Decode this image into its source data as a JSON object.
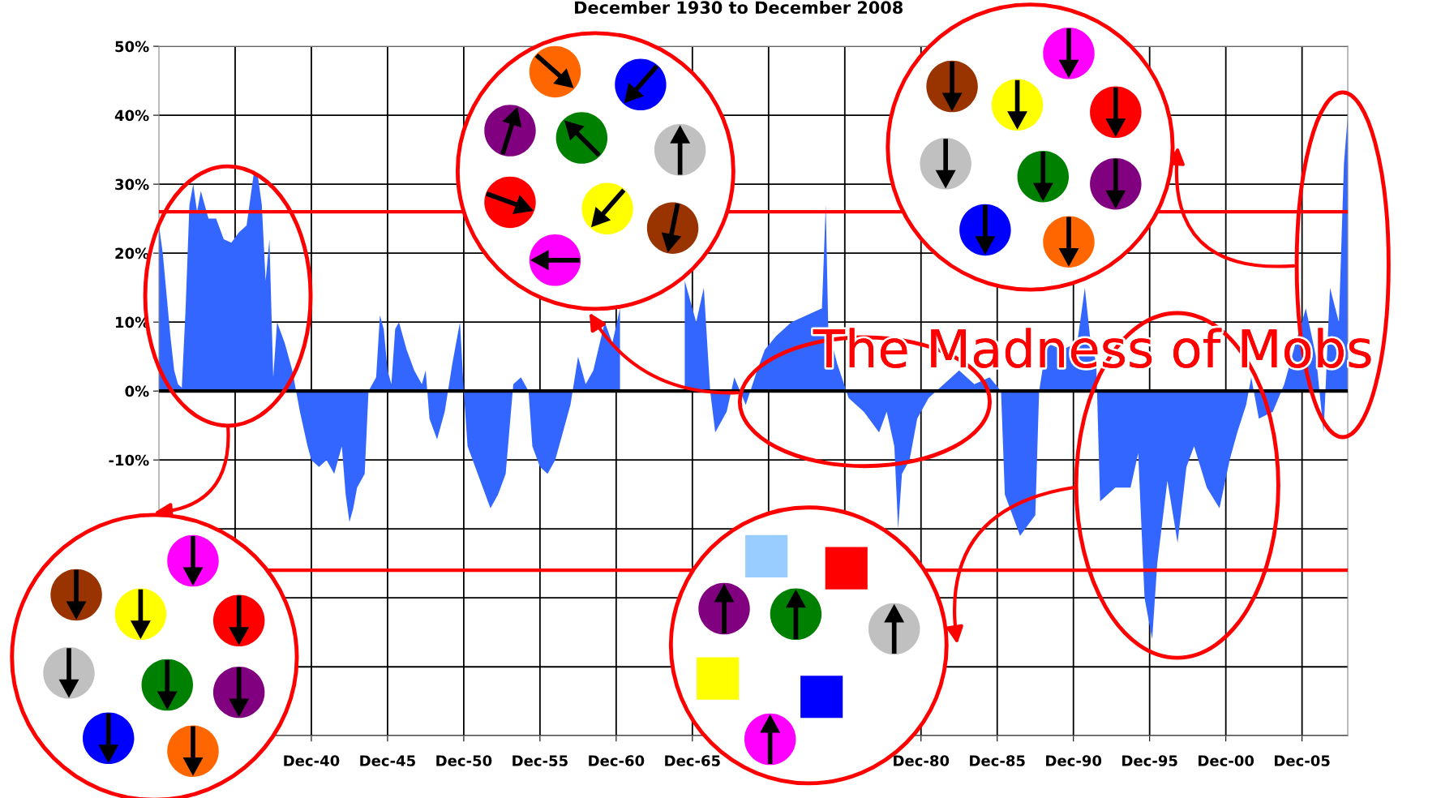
{
  "chart_data": {
    "type": "area",
    "title": "December 1930 to December 2008",
    "x": [
      "1930-12",
      "1931-03",
      "1931-06",
      "1931-09",
      "1931-12",
      "1932-03",
      "1932-06",
      "1932-09",
      "1932-12",
      "1933-03",
      "1933-06",
      "1933-09",
      "1934-03",
      "1934-09",
      "1935-03",
      "1935-09",
      "1936-03",
      "1936-09",
      "1937-03",
      "1937-06",
      "1937-09",
      "1937-12",
      "1938-03",
      "1938-06",
      "1938-09",
      "1939-03",
      "1939-09",
      "1940-03",
      "1940-09",
      "1940-12",
      "1941-06",
      "1941-12",
      "1942-06",
      "1942-12",
      "1943-03",
      "1943-06",
      "1943-09",
      "1943-12",
      "1944-06",
      "1944-09",
      "1945-03",
      "1945-06",
      "1945-09",
      "1945-12",
      "1946-03",
      "1946-06",
      "1946-09",
      "1947-03",
      "1947-09",
      "1948-03",
      "1948-06",
      "1948-09",
      "1949-03",
      "1949-09",
      "1950-03",
      "1950-09",
      "1950-12",
      "1951-03",
      "1951-09",
      "1952-03",
      "1952-09",
      "1953-03",
      "1953-09",
      "1954-03",
      "1954-09",
      "1955-03",
      "1955-06",
      "1955-12",
      "1956-06",
      "1956-12",
      "1957-06",
      "1957-12",
      "1958-06",
      "1958-12",
      "1959-06",
      "1960-03",
      "1960-09",
      "1961-03",
      "1961-09",
      "1962-06",
      "1963-06",
      "1964-06",
      "1965-06",
      "1966-03",
      "1966-09",
      "1967-02",
      "1967-06",
      "1968-03",
      "1968-09",
      "1969-06",
      "1970-03",
      "1970-09",
      "1971-06",
      "1972-06",
      "1973-06",
      "1974-06",
      "1974-09",
      "1974-11",
      "1975-06",
      "1976-03",
      "1977-03",
      "1978-03",
      "1978-09",
      "1979-03",
      "1979-06",
      "1979-09",
      "1980-03",
      "1980-09",
      "1981-06",
      "1982-06",
      "1983-06",
      "1984-06",
      "1985-06",
      "1986-03",
      "1986-06",
      "1987-06",
      "1988-06",
      "1988-09",
      "1989-03",
      "1990-03",
      "1991-03",
      "1991-09",
      "1992-01",
      "1992-06",
      "1992-09",
      "1993-09",
      "1994-09",
      "1995-03",
      "1995-08",
      "1996-02",
      "1996-06",
      "1997-02",
      "1997-10",
      "1998-05",
      "1998-11",
      "1999-09",
      "2000-07",
      "2001-03",
      "2001-09",
      "2002-04",
      "2002-08",
      "2003-02",
      "2004-01",
      "2004-10",
      "2005-07",
      "2006-03",
      "2006-11",
      "2007-05",
      "2007-10",
      "2008-05",
      "2008-09",
      "2008-12"
    ],
    "series": [
      {
        "color": "#3366ff",
        "values": [
          24,
          20,
          14,
          8,
          3,
          1,
          0.5,
          12,
          27,
          30,
          26,
          29,
          25,
          25,
          22,
          21.5,
          23,
          24,
          32,
          31,
          27,
          16,
          22,
          2,
          10,
          7,
          3,
          -3,
          -8,
          -10,
          -11,
          -10,
          -12,
          -8,
          -15,
          -19,
          -17,
          -14,
          -12,
          0,
          2,
          11,
          9,
          3,
          1,
          9,
          10,
          6,
          3,
          1,
          3,
          -4,
          -7,
          -3,
          4,
          10,
          0,
          -8,
          -11,
          -14,
          -17,
          -15,
          -12,
          1,
          2,
          0,
          -8,
          -11,
          -12,
          -10,
          -6,
          -2,
          5,
          1,
          3,
          10,
          7,
          12,
          null,
          null,
          null,
          null,
          16,
          10,
          15,
          0,
          -6,
          -3,
          2,
          -2,
          3,
          6,
          8,
          10,
          11,
          12,
          27,
          9,
          4,
          -1,
          -3,
          -6,
          -3,
          -8,
          -20,
          -12,
          -10,
          -4,
          -1,
          1,
          3,
          1,
          2,
          0,
          -15,
          -21,
          -18,
          0,
          7,
          6,
          7,
          15,
          8,
          4,
          -16,
          -14,
          -14,
          -9,
          -30,
          -36,
          -25,
          -13,
          -22,
          -11,
          -8,
          -14,
          -17,
          -10,
          -6,
          -2,
          2,
          -4,
          -3,
          1,
          7,
          12,
          5,
          -6,
          15,
          10,
          33,
          40
        ]
      }
    ],
    "xlim": [
      "1930-12",
      "2008-12"
    ],
    "xticks": [
      {
        "value": "1935-12",
        "label": null
      },
      {
        "value": "1940-12",
        "label": "Dec-40"
      },
      {
        "value": "1945-12",
        "label": "Dec-45"
      },
      {
        "value": "1950-12",
        "label": "Dec-50"
      },
      {
        "value": "1955-12",
        "label": "Dec-55"
      },
      {
        "value": "1960-12",
        "label": "Dec-60"
      },
      {
        "value": "1965-12",
        "label": "Dec-65"
      },
      {
        "value": "1970-12",
        "label": null
      },
      {
        "value": "1975-12",
        "label": null
      },
      {
        "value": "1980-12",
        "label": "Dec-80"
      },
      {
        "value": "1985-12",
        "label": "Dec-85"
      },
      {
        "value": "1990-12",
        "label": "Dec-90"
      },
      {
        "value": "1995-12",
        "label": "Dec-95"
      },
      {
        "value": "2000-12",
        "label": "Dec-00"
      },
      {
        "value": "2005-12",
        "label": "Dec-05"
      }
    ],
    "ylim": [
      -50,
      50
    ],
    "yticks": [
      {
        "value": -50,
        "label": null
      },
      {
        "value": -40,
        "label": null
      },
      {
        "value": -30,
        "label": null
      },
      {
        "value": -20,
        "label": null
      },
      {
        "value": -10,
        "label": "-10%"
      },
      {
        "value": 0,
        "label": "0%"
      },
      {
        "value": 10,
        "label": "10%"
      },
      {
        "value": 20,
        "label": "20%"
      },
      {
        "value": 30,
        "label": "30%"
      },
      {
        "value": 40,
        "label": "40%"
      },
      {
        "value": 50,
        "label": "50%"
      }
    ],
    "grid": true,
    "ref_lines": [
      {
        "axis": "y",
        "value": 0,
        "color": "#000000"
      },
      {
        "axis": "y",
        "value": 26,
        "color": "#ff0000"
      },
      {
        "axis": "y",
        "value": -26,
        "color": "#ff0000"
      }
    ],
    "annotations": [
      "The Madness of Mobs"
    ]
  }
}
